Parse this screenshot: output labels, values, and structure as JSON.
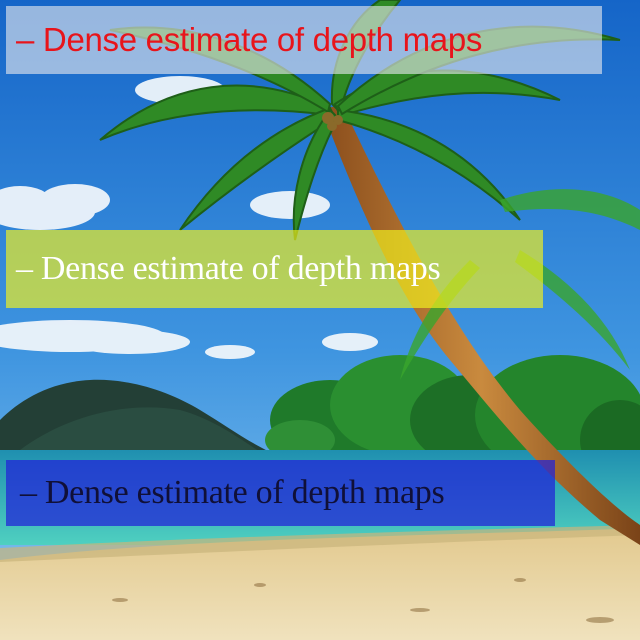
{
  "captions": [
    {
      "text": "– Dense estimate of depth maps",
      "text_color": "#e8141b",
      "background": "#e6e8ee"
    },
    {
      "text": "– Dense estimate of depth maps",
      "text_color": "#ffffff",
      "background": "#f2f01e"
    },
    {
      "text": "– Dense estimate of depth maps",
      "text_color": "#101038",
      "background": "#2121d8"
    }
  ],
  "scene": {
    "colors": {
      "sky_top": "#1a6fd0",
      "sky_bottom": "#6fb6ea",
      "island": "#1f4a3c",
      "sea": "#2bb3b8",
      "sand": "#ead9a8",
      "palm_trunk": "#b06a2a",
      "palm_leaf": "#2f8a25"
    },
    "icons": [
      "palm-tree-icon",
      "island-icon",
      "cloud-icon"
    ]
  }
}
